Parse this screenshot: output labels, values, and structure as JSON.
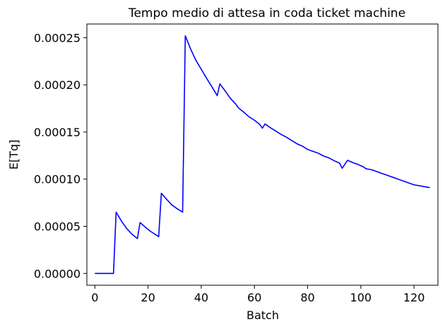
{
  "chart_data": {
    "type": "line",
    "title": "Tempo medio di attesa in coda ticket machine",
    "xlabel": "Batch",
    "ylabel": "E[Tq]",
    "xlim": [
      -3,
      129
    ],
    "ylim": [
      -1.25e-05,
      0.0002645
    ],
    "grid": false,
    "legend": "none",
    "xticks": [
      0,
      20,
      40,
      60,
      80,
      100,
      120
    ],
    "xtick_labels": [
      "0",
      "20",
      "40",
      "60",
      "80",
      "100",
      "120"
    ],
    "yticks": [
      0.0,
      5e-05,
      0.0001,
      0.00015,
      0.0002,
      0.00025
    ],
    "ytick_labels": [
      "0.00000",
      "0.00005",
      "0.00010",
      "0.00015",
      "0.00020",
      "0.00025"
    ],
    "series": [
      {
        "color": "#0000ff",
        "x": [
          0,
          7,
          8,
          10,
          12,
          14,
          16,
          17,
          19,
          21,
          24,
          25,
          27,
          29,
          31,
          33,
          34,
          36,
          38,
          40,
          42,
          44,
          46,
          47,
          49,
          51,
          53,
          54,
          56,
          58,
          60,
          62,
          63,
          64,
          66,
          68,
          70,
          72,
          74,
          76,
          78,
          80,
          82,
          84,
          86,
          88,
          90,
          92,
          93,
          95,
          97,
          99,
          101,
          102,
          104,
          106,
          108,
          110,
          112,
          114,
          116,
          118,
          120,
          122,
          124,
          125,
          126
        ],
        "y": [
          0.0,
          0.0,
          6.5e-05,
          5.55e-05,
          4.75e-05,
          4.15e-05,
          3.7e-05,
          5.4e-05,
          4.9e-05,
          4.45e-05,
          3.9e-05,
          8.5e-05,
          7.85e-05,
          7.25e-05,
          6.85e-05,
          6.5e-05,
          0.000252,
          0.000238,
          0.000226,
          0.0002165,
          0.000207,
          0.000198,
          0.0001885,
          0.000201,
          0.0001935,
          0.0001855,
          0.0001795,
          0.0001755,
          0.000171,
          0.000166,
          0.0001625,
          0.000158,
          0.000154,
          0.0001585,
          0.0001545,
          0.000151,
          0.0001475,
          0.0001445,
          0.000141,
          0.0001375,
          0.000135,
          0.0001315,
          0.0001295,
          0.0001275,
          0.0001245,
          0.0001225,
          0.0001195,
          0.000117,
          0.0001115,
          0.00012,
          0.0001175,
          0.0001155,
          0.000113,
          0.000111,
          0.00011,
          0.000108,
          0.000106,
          0.000104,
          0.000102,
          0.0001,
          9.8e-05,
          9.6e-05,
          9.4e-05,
          9.3e-05,
          9.2e-05,
          9.15e-05,
          9.1e-05
        ]
      }
    ]
  }
}
